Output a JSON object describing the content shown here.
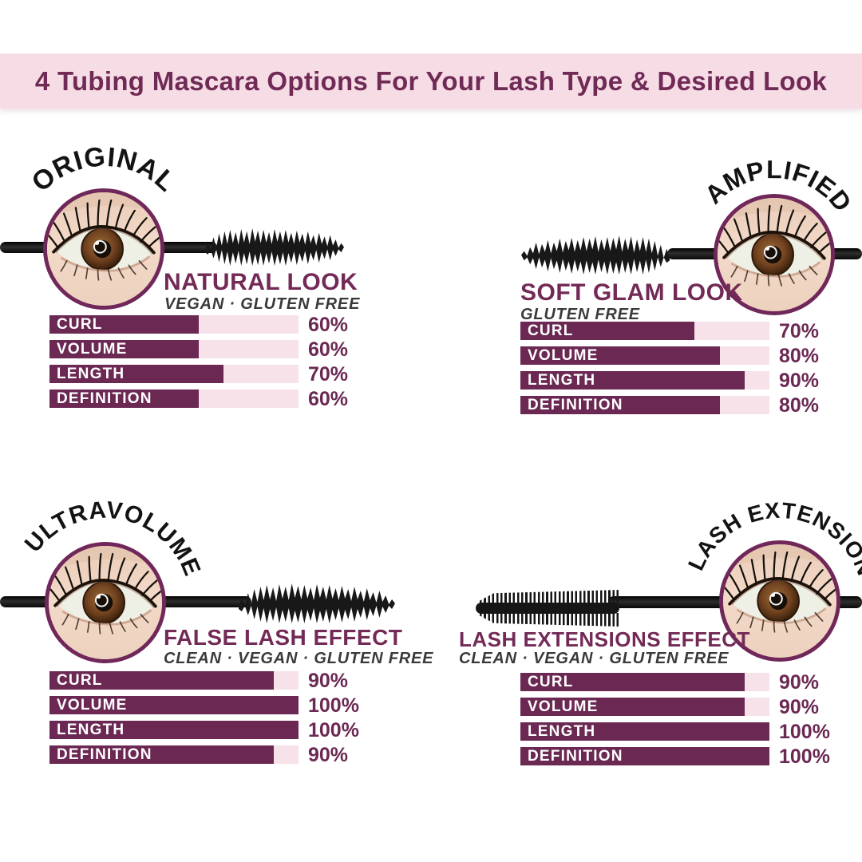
{
  "header": {
    "segments": [
      {
        "text": "4 Tubing Mascara ",
        "bold": true
      },
      {
        "text": "Options For Your ",
        "bold": false
      },
      {
        "text": "Lash Type ",
        "bold": true
      },
      {
        "text": "& ",
        "bold": false
      },
      {
        "text": "Desired Look",
        "bold": true
      }
    ]
  },
  "products": [
    {
      "arc_label": "ORIGINAL",
      "look": "NATURAL LOOK",
      "tags": "VEGAN · GLUTEN FREE",
      "metrics": [
        {
          "label": "CURL",
          "value": 60,
          "display": "60%"
        },
        {
          "label": "VOLUME",
          "value": 60,
          "display": "60%"
        },
        {
          "label": "LENGTH",
          "value": 70,
          "display": "70%"
        },
        {
          "label": "DEFINITION",
          "value": 60,
          "display": "60%"
        }
      ]
    },
    {
      "arc_label": "AMPLIFIED",
      "look": "SOFT GLAM LOOK",
      "tags": "GLUTEN FREE",
      "metrics": [
        {
          "label": "CURL",
          "value": 70,
          "display": "70%"
        },
        {
          "label": "VOLUME",
          "value": 80,
          "display": "80%"
        },
        {
          "label": "LENGTH",
          "value": 90,
          "display": "90%"
        },
        {
          "label": "DEFINITION",
          "value": 80,
          "display": "80%"
        }
      ]
    },
    {
      "arc_label": "ULTRAVOLUME",
      "look": "FALSE LASH EFFECT",
      "tags": "CLEAN · VEGAN · GLUTEN FREE",
      "metrics": [
        {
          "label": "CURL",
          "value": 90,
          "display": "90%"
        },
        {
          "label": "VOLUME",
          "value": 100,
          "display": "100%"
        },
        {
          "label": "LENGTH",
          "value": 100,
          "display": "100%"
        },
        {
          "label": "DEFINITION",
          "value": 90,
          "display": "90%"
        }
      ]
    },
    {
      "arc_label": "LASH EXTENSION",
      "look": "LASH EXTENSIONS EFFECT",
      "tags": "CLEAN · VEGAN · GLUTEN FREE",
      "metrics": [
        {
          "label": "CURL",
          "value": 90,
          "display": "90%"
        },
        {
          "label": "VOLUME",
          "value": 90,
          "display": "90%"
        },
        {
          "label": "LENGTH",
          "value": 100,
          "display": "100%"
        },
        {
          "label": "DEFINITION",
          "value": 100,
          "display": "100%"
        }
      ]
    }
  ],
  "colors": {
    "banner_bg": "#f6dce4",
    "title_text": "#702a56",
    "bar_fill": "#6b2853",
    "bar_track": "#f7e2e9",
    "percent_text": "#6b2853",
    "look_title_text": "#732a56",
    "caption_text": "#3a3a3a",
    "arch_text": "#131313",
    "circle_border": "#70275a"
  },
  "chart_data": [
    {
      "type": "bar",
      "orientation": "horizontal",
      "group": "ORIGINAL",
      "title": "NATURAL LOOK",
      "categories": [
        "CURL",
        "VOLUME",
        "LENGTH",
        "DEFINITION"
      ],
      "values": [
        60,
        60,
        70,
        60
      ],
      "unit": "%",
      "xlim": [
        0,
        100
      ],
      "bar_color": "#6b2853",
      "track_color": "#f7e2e9"
    },
    {
      "type": "bar",
      "orientation": "horizontal",
      "group": "AMPLIFIED",
      "title": "SOFT GLAM LOOK",
      "categories": [
        "CURL",
        "VOLUME",
        "LENGTH",
        "DEFINITION"
      ],
      "values": [
        70,
        80,
        90,
        80
      ],
      "unit": "%",
      "xlim": [
        0,
        100
      ],
      "bar_color": "#6b2853",
      "track_color": "#f7e2e9"
    },
    {
      "type": "bar",
      "orientation": "horizontal",
      "group": "ULTRAVOLUME",
      "title": "FALSE LASH EFFECT",
      "categories": [
        "CURL",
        "VOLUME",
        "LENGTH",
        "DEFINITION"
      ],
      "values": [
        90,
        100,
        100,
        90
      ],
      "unit": "%",
      "xlim": [
        0,
        100
      ],
      "bar_color": "#6b2853",
      "track_color": "#f7e2e9"
    },
    {
      "type": "bar",
      "orientation": "horizontal",
      "group": "LASH EXTENSION",
      "title": "LASH EXTENSIONS EFFECT",
      "categories": [
        "CURL",
        "VOLUME",
        "LENGTH",
        "DEFINITION"
      ],
      "values": [
        90,
        90,
        100,
        100
      ],
      "unit": "%",
      "xlim": [
        0,
        100
      ],
      "bar_color": "#6b2853",
      "track_color": "#f7e2e9"
    }
  ]
}
